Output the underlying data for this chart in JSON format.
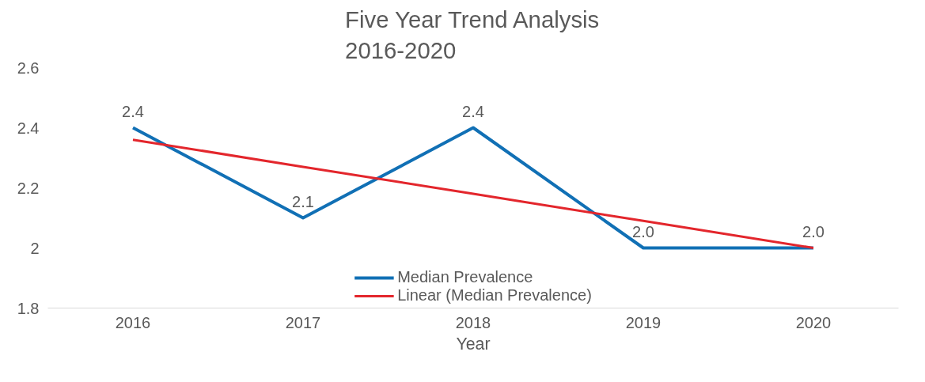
{
  "chart_data": {
    "type": "line",
    "title": "Five Year Trend Analysis\n2016-2020",
    "xlabel": "Year",
    "categories": [
      "2016",
      "2017",
      "2018",
      "2019",
      "2020"
    ],
    "series": [
      {
        "name": "Median Prevalence",
        "color": "#1170b5",
        "values": [
          2.4,
          2.1,
          2.4,
          2.0,
          2.0
        ],
        "value_labels": [
          "2.4",
          "2.1",
          "2.4",
          "2.0",
          "2.0"
        ]
      },
      {
        "name": "Linear (Median Prevalence)",
        "color": "#e3262c",
        "values": [
          2.36,
          2.27,
          2.18,
          2.09,
          2.0
        ]
      }
    ],
    "ylim": [
      1.8,
      2.6
    ],
    "yticks": [
      1.8,
      2,
      2.2,
      2.4,
      2.6
    ],
    "grid": false,
    "legend": "bottom",
    "marker": "none",
    "line_style": "solid"
  }
}
